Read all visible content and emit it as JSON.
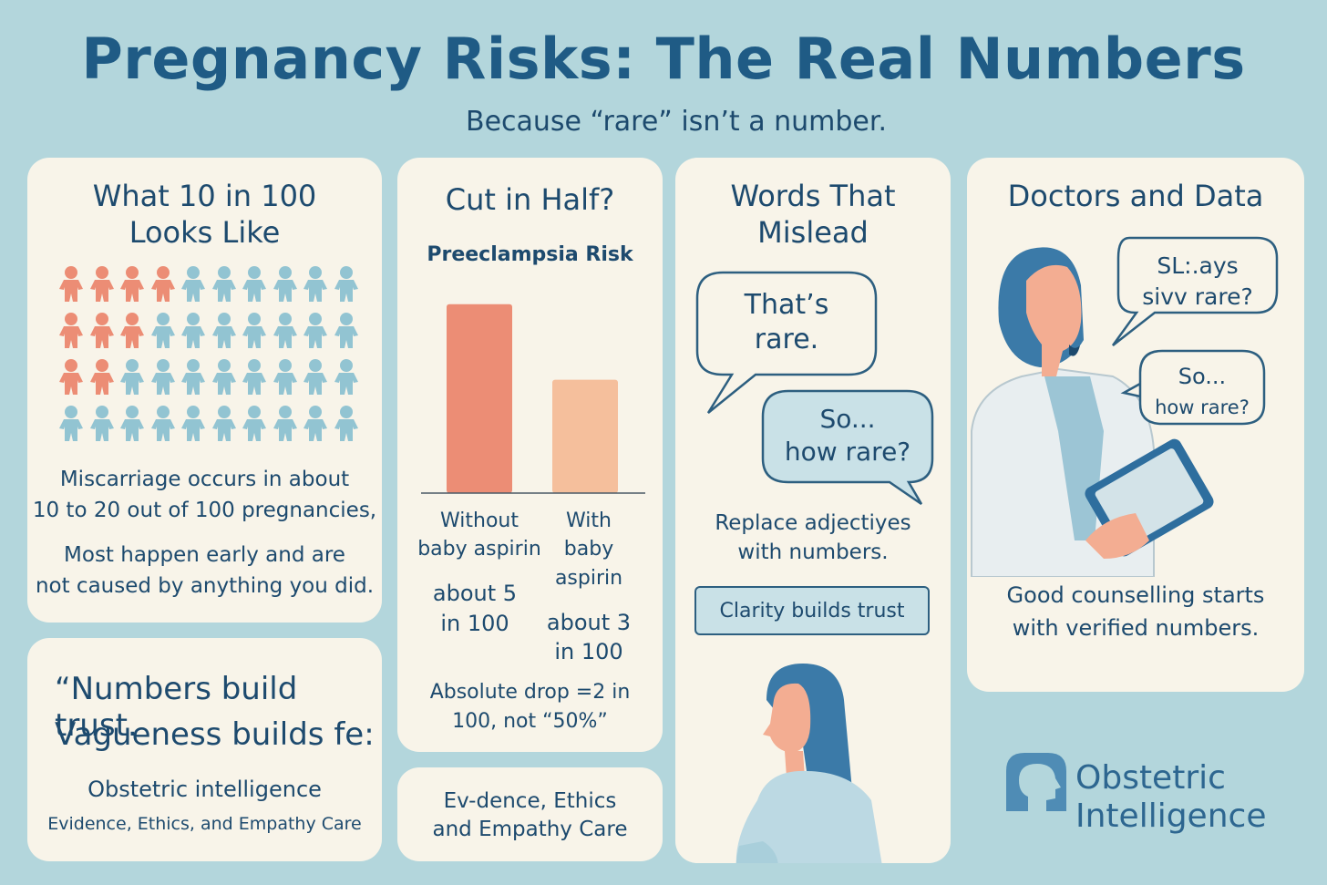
{
  "header": {
    "title": "Pregnancy  Risks: The Real Numbers",
    "subtitle": "Because “rare” isn’t a number."
  },
  "colors": {
    "background": "#b3d6dc",
    "card": "#f8f4e9",
    "coral": "#ec8d75",
    "peach": "#f5bf9c",
    "blue_figure": "#92c4d2",
    "navy_text": "#1d4a6e"
  },
  "card1": {
    "title_line1": "What 10 in 100",
    "title_line2": "Looks Like",
    "body_line1": "Miscarriage occurs in about",
    "body_line2": "10 to 20 out of 100 pregnancies,",
    "body_line3": "Most happen early and are",
    "body_line4": "not caused by anything you did.",
    "figure_icon": "person-icon",
    "highlighted_per_row": [
      4,
      3,
      2,
      0
    ]
  },
  "quote_card": {
    "line1": "“Numbers build trust.",
    "line2": "Vagueness builds fe:",
    "org": "Obstetric intelligence",
    "tagline": "Evidence, Ethics, and Empathy Care"
  },
  "card2": {
    "title": "Cut in Half?",
    "chart_title": "Preeclampsia Risk",
    "label_a_line1": "Without",
    "label_a_line2": "baby aspirin",
    "label_b_line1": "With",
    "label_b_line2": "baby",
    "label_b_line3": "aspirin",
    "value_a_line1": "about 5",
    "value_a_line2": "in 100",
    "value_b_line1": "about 3",
    "value_b_line2": "in 100",
    "note_line1": "Absolute drop =2 in",
    "note_line2": "100, not “50%”"
  },
  "chart_data": {
    "type": "bar",
    "title": "Preeclampsia Risk",
    "categories": [
      "Without baby aspirin",
      "With baby aspirin"
    ],
    "values": [
      5,
      3
    ],
    "ylim": [
      0,
      5.5
    ],
    "grid": false
  },
  "small_card": {
    "line1": "Ev-dence, Ethics",
    "line2": "and Empathy Care"
  },
  "card3": {
    "title_line1": "Words That",
    "title_line2": "Mislead",
    "bubble1_line1": "That’s",
    "bubble1_line2": "rare.",
    "bubble2_line1": "So...",
    "bubble2_line2": "how rare?",
    "body_line1": "Replace adjectiyes",
    "body_line2": "with numbers.",
    "pill": "Clarity builds trust",
    "figure_icon": "pregnant-woman-icon"
  },
  "card4": {
    "title": "Doctors and Data",
    "bubble1_line1": "SL:.ays",
    "bubble1_line2": "sivv rare?",
    "bubble2_line1": "So...",
    "bubble2_line2": "how rare?",
    "body_line1": "Good counselling starts",
    "body_line2": "with verified numbers.",
    "figure_icon": "doctor-with-tablet-icon"
  },
  "logo": {
    "line1": "Obstetric",
    "line2": "Intelligence",
    "icon": "head-profile-icon"
  }
}
